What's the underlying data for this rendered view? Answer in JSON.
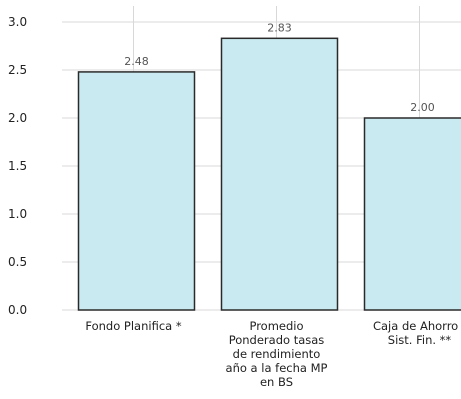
{
  "chart_data": {
    "type": "bar",
    "title": "",
    "xlabel": "",
    "ylabel": "",
    "categories": [
      [
        "Fondo Planifica *"
      ],
      [
        "Promedio",
        "Ponderado tasas",
        "de rendimiento",
        "año a la fecha MP",
        "en BS"
      ],
      [
        "Caja de Ahorro -",
        "Sist. Fin. **"
      ]
    ],
    "values": [
      2.48,
      2.83,
      2.0
    ],
    "value_labels": [
      "2.48",
      "2.83",
      "2.00"
    ],
    "yticks": [
      "0.0",
      "0.5",
      "1.0",
      "1.5",
      "2.0",
      "2.5",
      "3.0"
    ],
    "ylim": [
      0,
      3.0
    ],
    "grid": true,
    "colors": {
      "bar_fill": "#c8eaf0",
      "bar_stroke": "#2a2a2a",
      "grid": "#d8d8d8"
    }
  }
}
